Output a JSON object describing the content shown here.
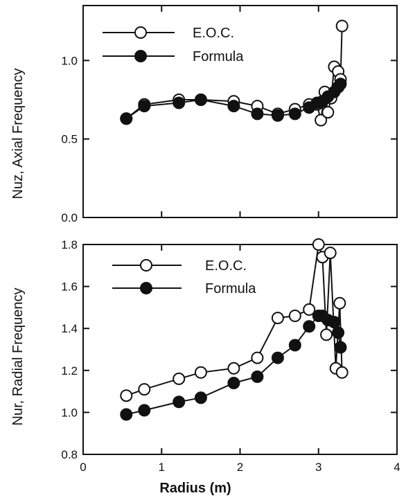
{
  "chart_data": [
    {
      "type": "line",
      "ylabel": "Nuz, Axial Frequency",
      "xlim": [
        0,
        4
      ],
      "ylim": [
        0.0,
        1.35
      ],
      "yticks": [
        "0.0",
        "0.5",
        "1.0"
      ],
      "xticks": [
        "",
        "",
        "",
        "",
        ""
      ],
      "legend_position": "top-left",
      "series": [
        {
          "name": "E.O.C.",
          "marker": "open-circle",
          "x": [
            0.55,
            0.78,
            1.22,
            1.5,
            1.92,
            2.22,
            2.48,
            2.7,
            2.88,
            2.98,
            3.03,
            3.08,
            3.12,
            3.16,
            3.2,
            3.25,
            3.28,
            3.3
          ],
          "y": [
            0.63,
            0.72,
            0.75,
            0.75,
            0.74,
            0.71,
            0.66,
            0.69,
            0.72,
            0.72,
            0.62,
            0.8,
            0.67,
            0.76,
            0.96,
            0.93,
            0.88,
            1.22
          ]
        },
        {
          "name": "Formula",
          "marker": "filled-circle",
          "x": [
            0.55,
            0.78,
            1.22,
            1.5,
            1.92,
            2.22,
            2.48,
            2.7,
            2.88,
            2.98,
            3.05,
            3.12,
            3.2,
            3.25,
            3.28
          ],
          "y": [
            0.63,
            0.71,
            0.73,
            0.75,
            0.71,
            0.66,
            0.65,
            0.66,
            0.7,
            0.73,
            0.74,
            0.77,
            0.8,
            0.83,
            0.85
          ]
        }
      ]
    },
    {
      "type": "line",
      "xlabel": "Radius (m)",
      "ylabel": "Nur, Radial Frequency",
      "xlim": [
        0,
        4
      ],
      "ylim": [
        0.8,
        1.8
      ],
      "yticks": [
        "0.8",
        "1.0",
        "1.2",
        "1.4",
        "1.6",
        "1.8"
      ],
      "xticks": [
        "0",
        "1",
        "2",
        "3",
        "4"
      ],
      "legend_position": "top-left",
      "series": [
        {
          "name": "E.O.C.",
          "marker": "open-circle",
          "x": [
            0.55,
            0.78,
            1.22,
            1.5,
            1.92,
            2.22,
            2.48,
            2.7,
            2.88,
            3.0,
            3.05,
            3.1,
            3.15,
            3.22,
            3.27,
            3.3
          ],
          "y": [
            1.08,
            1.11,
            1.16,
            1.19,
            1.21,
            1.26,
            1.45,
            1.46,
            1.49,
            1.8,
            1.74,
            1.37,
            1.76,
            1.21,
            1.52,
            1.19
          ]
        },
        {
          "name": "Formula",
          "marker": "filled-circle",
          "x": [
            0.55,
            0.78,
            1.22,
            1.5,
            1.92,
            2.22,
            2.48,
            2.7,
            2.88,
            3.0,
            3.05,
            3.12,
            3.2,
            3.25,
            3.28
          ],
          "y": [
            0.99,
            1.01,
            1.05,
            1.07,
            1.14,
            1.17,
            1.26,
            1.32,
            1.41,
            1.46,
            1.46,
            1.44,
            1.43,
            1.38,
            1.31
          ]
        }
      ]
    }
  ]
}
